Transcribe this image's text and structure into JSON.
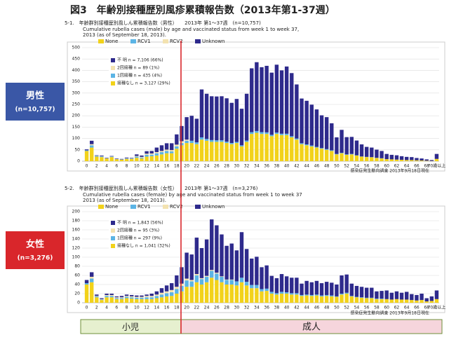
{
  "header": {
    "title": "図3　年齢別接種歴別風疹累積報告数（2013年第1-37週）"
  },
  "side_labels": [
    {
      "label": "男性",
      "n": "(n=10,757)"
    },
    {
      "label": "女性",
      "n": "(n=3,276)"
    }
  ],
  "age_groups": [
    "小児",
    "成人"
  ],
  "chart_data": [
    {
      "type": "bar",
      "stacked": true,
      "title": "5-1.　年齢群別接種歴別風しん累積報告数（男性）　　2013年 第1〜37週　(n=10,757)",
      "subtitle": [
        "Cumulative rubella cases (male) by age and vaccinated status from week 1 to week 37,",
        "2013 (as of  September 18, 2013)."
      ],
      "annotations": [
        "不 明 n = 7,106 (66%)",
        "2回接種 n = 89 (1%)",
        "1回接種 n = 435 (4%)",
        "接種なし n = 3,127 (29%)"
      ],
      "source": "感染症発生動向調査 2013年9月18日現在",
      "ylim": [
        0,
        500
      ],
      "yticks": [
        0,
        50,
        100,
        150,
        200,
        250,
        300,
        350,
        400,
        450,
        500
      ],
      "grid": true,
      "categories": [
        0,
        null,
        2,
        null,
        4,
        null,
        6,
        null,
        8,
        null,
        10,
        null,
        12,
        null,
        14,
        null,
        16,
        null,
        18,
        null,
        20,
        null,
        22,
        null,
        24,
        null,
        26,
        null,
        28,
        null,
        30,
        null,
        32,
        null,
        34,
        null,
        36,
        null,
        38,
        null,
        40,
        null,
        42,
        null,
        44,
        null,
        46,
        null,
        48,
        null,
        50,
        null,
        52,
        null,
        54,
        null,
        56,
        null,
        58,
        null,
        60,
        null,
        62,
        null,
        64,
        null,
        66,
        null,
        68,
        null,
        "70歳以上"
      ],
      "series": [
        {
          "name": "None",
          "color": "#f2d21a",
          "values": [
            45,
            60,
            20,
            18,
            12,
            18,
            9,
            7,
            10,
            10,
            15,
            12,
            20,
            22,
            25,
            30,
            35,
            35,
            55,
            70,
            80,
            80,
            75,
            95,
            90,
            85,
            85,
            85,
            80,
            75,
            80,
            65,
            85,
            120,
            125,
            120,
            120,
            110,
            120,
            115,
            115,
            105,
            95,
            75,
            70,
            65,
            60,
            55,
            50,
            45,
            30,
            35,
            28,
            30,
            25,
            20,
            18,
            17,
            14,
            12,
            9,
            8,
            7,
            6,
            5,
            5,
            4,
            3,
            2,
            1,
            10
          ]
        },
        {
          "name": "RCV1",
          "color": "#5bb4e5",
          "values": [
            3,
            10,
            3,
            3,
            1,
            2,
            1,
            1,
            2,
            2,
            5,
            4,
            8,
            7,
            10,
            10,
            10,
            8,
            10,
            10,
            10,
            10,
            8,
            10,
            8,
            8,
            7,
            7,
            6,
            5,
            5,
            5,
            6,
            8,
            8,
            8,
            7,
            6,
            6,
            6,
            6,
            5,
            5,
            4,
            4,
            4,
            3,
            3,
            3,
            3,
            2,
            2,
            2,
            2,
            1,
            1,
            1,
            1,
            1,
            1,
            0,
            0,
            0,
            0,
            0,
            0,
            0,
            0,
            0,
            0,
            0
          ]
        },
        {
          "name": "RCV2",
          "color": "#f3e2b0",
          "values": [
            0,
            5,
            1,
            1,
            0,
            1,
            0,
            0,
            1,
            1,
            3,
            3,
            5,
            5,
            5,
            5,
            6,
            6,
            8,
            8,
            5,
            0,
            0,
            0,
            0,
            0,
            0,
            0,
            0,
            0,
            0,
            0,
            0,
            0,
            0,
            0,
            0,
            0,
            0,
            0,
            0,
            0,
            0,
            0,
            0,
            0,
            0,
            0,
            0,
            0,
            0,
            0,
            0,
            0,
            0,
            0,
            0,
            0,
            0,
            0,
            0,
            0,
            0,
            0,
            0,
            0,
            0,
            0,
            0,
            0,
            0
          ]
        },
        {
          "name": "Unknown",
          "color": "#2e2a8c",
          "values": [
            4,
            15,
            2,
            3,
            2,
            2,
            2,
            2,
            3,
            2,
            7,
            6,
            11,
            11,
            20,
            25,
            28,
            30,
            45,
            67,
            99,
            110,
            104,
            211,
            199,
            193,
            193,
            194,
            191,
            177,
            189,
            161,
            206,
            281,
            303,
            286,
            293,
            274,
            299,
            279,
            296,
            278,
            238,
            197,
            192,
            180,
            165,
            144,
            141,
            119,
            73,
            101,
            76,
            75,
            65,
            53,
            44,
            42,
            36,
            32,
            23,
            20,
            19,
            16,
            14,
            13,
            10,
            9,
            6,
            4,
            22
          ]
        }
      ]
    },
    {
      "type": "bar",
      "stacked": true,
      "title": "5-2.　年齢群別接種歴別風しん累積報告数（女性）　　2013年 第1〜37週　(n=3,276)",
      "subtitle": [
        "Cumulative rubella cases (female) by age and vaccinated status from week 1 to week 37",
        "2013 (as of  September 18, 2013)."
      ],
      "annotations": [
        "不 明 n = 1,843 (56%)",
        "2回接種 n = 95 (3%)",
        "1回接種 n = 297 (9%)",
        "接種なし n = 1,041 (32%)"
      ],
      "source": "感染症発生動向調査 2013年9月18日現在",
      "ylim": [
        0,
        200
      ],
      "yticks": [
        0,
        20,
        40,
        60,
        80,
        100,
        120,
        140,
        160,
        180,
        200
      ],
      "grid": true,
      "categories": [
        0,
        null,
        2,
        null,
        4,
        null,
        6,
        null,
        8,
        null,
        10,
        null,
        12,
        null,
        14,
        null,
        16,
        null,
        18,
        null,
        20,
        null,
        22,
        null,
        24,
        null,
        26,
        null,
        28,
        null,
        30,
        null,
        32,
        null,
        34,
        null,
        36,
        null,
        38,
        null,
        40,
        null,
        42,
        null,
        44,
        null,
        46,
        null,
        48,
        null,
        50,
        null,
        52,
        null,
        54,
        null,
        56,
        null,
        58,
        null,
        60,
        null,
        62,
        null,
        64,
        null,
        66,
        null,
        68,
        null,
        "70歳以上"
      ],
      "series": [
        {
          "name": "None",
          "color": "#f2d21a",
          "values": [
            40,
            45,
            12,
            6,
            12,
            12,
            8,
            8,
            10,
            9,
            8,
            8,
            8,
            8,
            10,
            12,
            14,
            15,
            20,
            25,
            35,
            35,
            45,
            40,
            45,
            55,
            50,
            45,
            40,
            40,
            38,
            45,
            38,
            32,
            32,
            25,
            26,
            20,
            18,
            20,
            20,
            18,
            18,
            15,
            16,
            15,
            16,
            14,
            15,
            14,
            13,
            18,
            20,
            14,
            12,
            11,
            10,
            10,
            8,
            8,
            8,
            7,
            8,
            7,
            7,
            6,
            5,
            6,
            3,
            4,
            8
          ]
        },
        {
          "name": "RCV1",
          "color": "#5bb4e5",
          "values": [
            3,
            8,
            2,
            1,
            3,
            3,
            2,
            2,
            3,
            3,
            3,
            3,
            4,
            4,
            5,
            6,
            7,
            8,
            10,
            12,
            14,
            12,
            15,
            12,
            12,
            15,
            14,
            12,
            10,
            10,
            9,
            10,
            8,
            7,
            7,
            5,
            5,
            4,
            3,
            4,
            3,
            3,
            3,
            2,
            2,
            2,
            2,
            2,
            2,
            2,
            1,
            2,
            2,
            1,
            1,
            1,
            1,
            1,
            1,
            1,
            0,
            0,
            0,
            0,
            0,
            0,
            0,
            0,
            0,
            0,
            0
          ]
        },
        {
          "name": "RCV2",
          "color": "#f3e2b0",
          "values": [
            0,
            4,
            1,
            1,
            2,
            2,
            2,
            2,
            2,
            2,
            2,
            2,
            3,
            3,
            3,
            4,
            4,
            5,
            5,
            5,
            4,
            3,
            3,
            2,
            2,
            2,
            2,
            1,
            1,
            1,
            0,
            0,
            0,
            0,
            0,
            0,
            0,
            0,
            0,
            0,
            0,
            0,
            0,
            0,
            0,
            0,
            0,
            0,
            0,
            0,
            0,
            0,
            0,
            0,
            0,
            0,
            0,
            0,
            0,
            0,
            0,
            0,
            0,
            0,
            0,
            0,
            0,
            0,
            0,
            0,
            0
          ]
        },
        {
          "name": "Unknown",
          "color": "#2e2a8c",
          "values": [
            7,
            10,
            3,
            2,
            3,
            3,
            2,
            3,
            3,
            3,
            3,
            3,
            3,
            5,
            7,
            10,
            13,
            15,
            25,
            36,
            57,
            56,
            80,
            66,
            80,
            111,
            104,
            92,
            74,
            79,
            68,
            100,
            72,
            58,
            62,
            48,
            51,
            35,
            33,
            39,
            35,
            34,
            34,
            25,
            30,
            28,
            30,
            27,
            29,
            28,
            26,
            40,
            40,
            27,
            24,
            23,
            22,
            22,
            16,
            17,
            19,
            15,
            17,
            15,
            17,
            13,
            12,
            14,
            7,
            10,
            19
          ]
        }
      ]
    }
  ]
}
